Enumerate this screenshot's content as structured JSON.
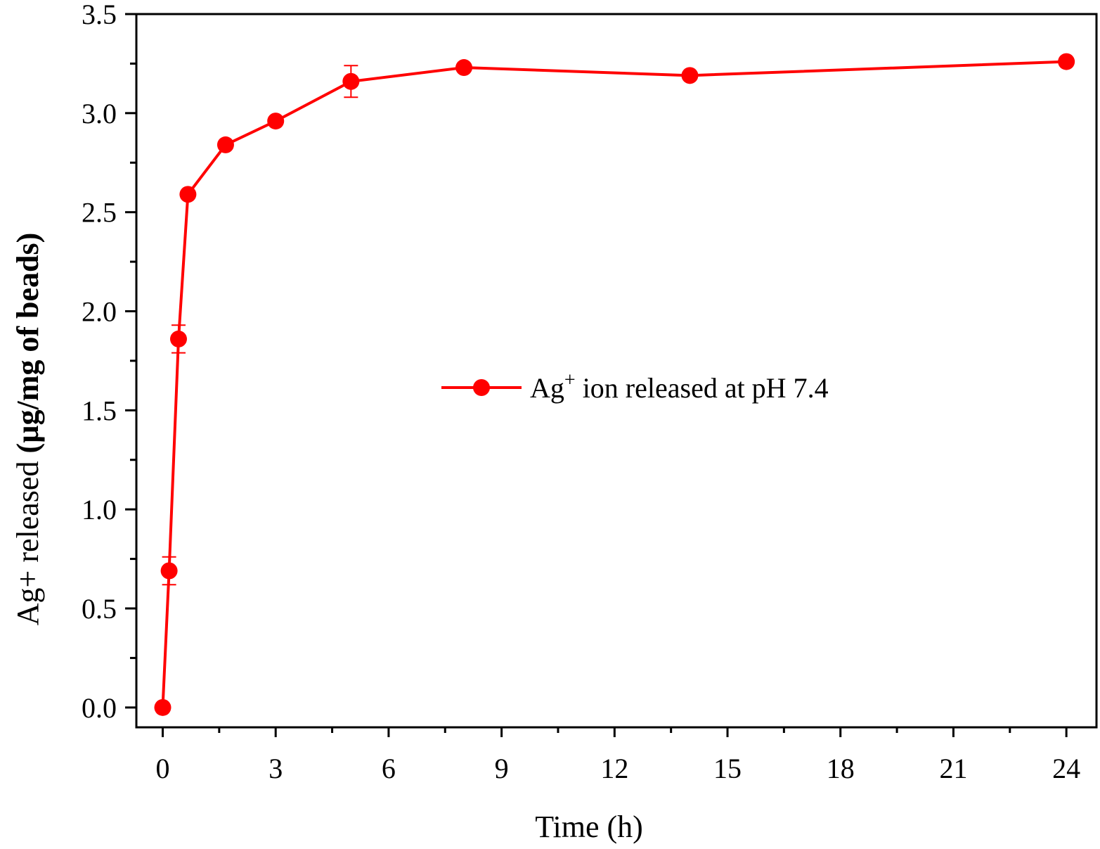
{
  "chart_data": {
    "type": "line",
    "title": "",
    "xlabel": "Time (h)",
    "ylabel_main": "Ag+ released ",
    "ylabel_unit": "(µg/mg of beads)",
    "xlim": [
      -0.7,
      24.8
    ],
    "ylim": [
      -0.1,
      3.5
    ],
    "xticks": [
      0,
      3,
      6,
      9,
      12,
      15,
      18,
      21,
      24
    ],
    "xtick_labels": [
      "0",
      "3",
      "6",
      "9",
      "12",
      "15",
      "18",
      "21",
      "24"
    ],
    "yticks": [
      0.0,
      0.5,
      1.0,
      1.5,
      2.0,
      2.5,
      3.0,
      3.5
    ],
    "ytick_labels": [
      "0.0",
      "0.5",
      "1.0",
      "1.5",
      "2.0",
      "2.5",
      "3.0",
      "3.5"
    ],
    "x_minor_step": 1.5,
    "y_minor_step": 0.25,
    "color": "#ff0000",
    "legend_position": "center-right",
    "series": [
      {
        "name": "Ag⁺ ion released at pH 7.4",
        "name_base": "Ag",
        "name_sup": "+",
        "name_rest": " ion released at pH 7.4",
        "x": [
          0,
          0.17,
          0.42,
          0.67,
          1.67,
          3,
          5,
          8,
          14,
          24
        ],
        "y": [
          0.0,
          0.69,
          1.86,
          2.59,
          2.84,
          2.96,
          3.16,
          3.23,
          3.19,
          3.26
        ],
        "err": [
          0,
          0.07,
          0.07,
          0,
          0,
          0,
          0.08,
          0,
          0,
          0
        ]
      }
    ]
  }
}
